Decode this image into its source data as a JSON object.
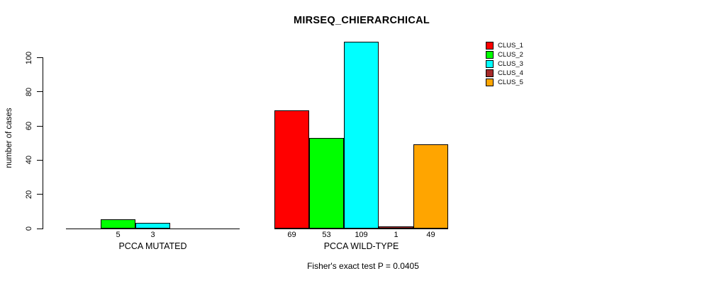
{
  "chart_data": {
    "type": "bar",
    "title": "MIRSEQ_CHIERARCHICAL",
    "ylabel": "number of cases",
    "xlabel": "",
    "annotation": "Fisher's exact test P = 0.0405",
    "ylim": [
      0,
      100
    ],
    "yticks": [
      0,
      20,
      40,
      60,
      80,
      100
    ],
    "grid": false,
    "legend_position": "top-right",
    "categories": [
      "PCCA MUTATED",
      "PCCA WILD-TYPE"
    ],
    "series": [
      {
        "name": "CLUS_1",
        "color": "#FF0000",
        "values": [
          0,
          69
        ]
      },
      {
        "name": "CLUS_2",
        "color": "#00FF00",
        "values": [
          5,
          53
        ]
      },
      {
        "name": "CLUS_3",
        "color": "#00FFFF",
        "values": [
          3,
          109
        ]
      },
      {
        "name": "CLUS_4",
        "color": "#A52A2A",
        "values": [
          0,
          1
        ]
      },
      {
        "name": "CLUS_5",
        "color": "#FFA500",
        "values": [
          0,
          49
        ]
      }
    ],
    "bar_value_labels": {
      "PCCA MUTATED": [
        null,
        5,
        3,
        null,
        null
      ],
      "PCCA WILD-TYPE": [
        69,
        53,
        109,
        1,
        49
      ]
    }
  }
}
